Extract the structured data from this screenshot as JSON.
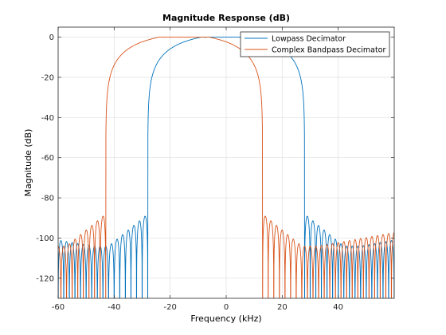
{
  "chart_data": {
    "type": "line",
    "title": "Magnitude Response (dB)",
    "xlabel": "Frequency (kHz)",
    "ylabel": "Magnitude (dB)",
    "xlim": [
      -60,
      60
    ],
    "ylim": [
      -130,
      5
    ],
    "xticks": [
      -60,
      -40,
      -20,
      0,
      20,
      40
    ],
    "xtick_labels": [
      "-60",
      "-40",
      "-20",
      "0",
      "20",
      "40"
    ],
    "yticks": [
      0,
      -20,
      -40,
      -60,
      -80,
      -100,
      -120
    ],
    "ytick_labels": [
      "0",
      "-20",
      "-40",
      "-60",
      "-80",
      "-100",
      "-120"
    ],
    "grid": true,
    "legend_position": "top-right",
    "series": [
      {
        "name": "Lowpass Decimator",
        "color": "#0072BD",
        "passband_center_khz": 0,
        "passband_edge_khz": 9,
        "stopband_edge_khz": 28,
        "passband_level_db": 0,
        "stopband_level_db_range": [
          -130,
          -86
        ]
      },
      {
        "name": "Complex Bandpass Decimator",
        "color": "#D95319",
        "passband_center_khz": -15,
        "passband_edge_khz": 9,
        "stopband_edge_khz": 28,
        "passband_level_db": 0,
        "stopband_level_db_range": [
          -130,
          -88
        ]
      }
    ]
  }
}
